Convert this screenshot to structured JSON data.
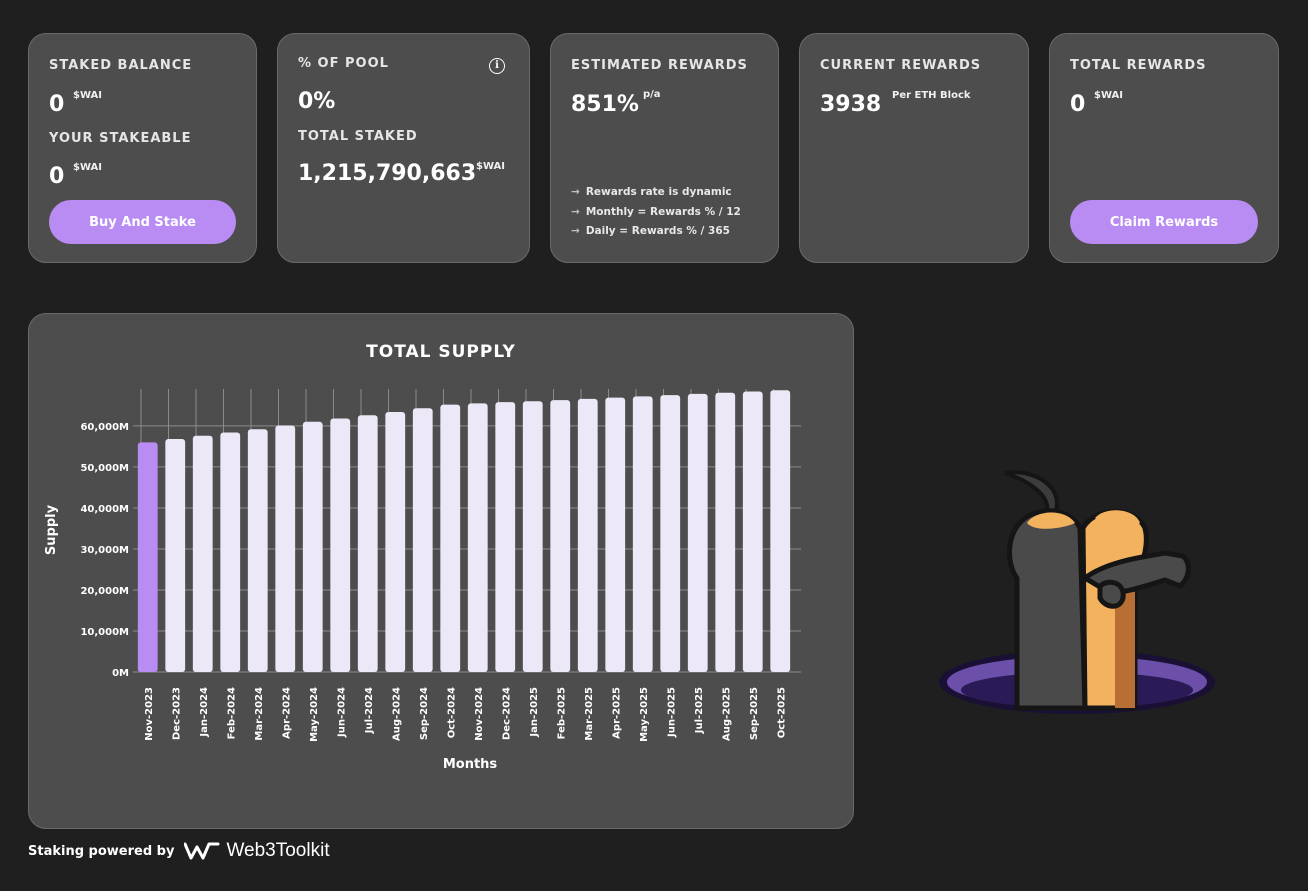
{
  "cards": {
    "staked": {
      "balance_label": "STAKED BALANCE",
      "balance_value": "0",
      "balance_unit": "$WAI",
      "stakeable_label": "YOUR STAKEABLE",
      "stakeable_value": "0",
      "stakeable_unit": "$WAI",
      "button": "Buy And Stake"
    },
    "pool": {
      "pct_label": "% OF POOL",
      "pct_value": "0%",
      "total_label": "TOTAL STAKED",
      "total_value": "1,215,790,663",
      "total_unit": "$WAI",
      "info_icon": "info-icon"
    },
    "estimated": {
      "label": "ESTIMATED REWARDS",
      "value": "851%",
      "unit": "p/a",
      "notes": [
        "Rewards rate is dynamic",
        "Monthly = Rewards % / 12",
        "Daily = Rewards % / 365"
      ]
    },
    "current": {
      "label": "CURRENT REWARDS",
      "value": "3938",
      "unit": "Per ETH Block"
    },
    "total": {
      "label": "TOTAL REWARDS",
      "value": "0",
      "unit": "$WAI",
      "button": "Claim Rewards"
    }
  },
  "chart_data": {
    "type": "bar",
    "title": "TOTAL SUPPLY",
    "xlabel": "Months",
    "ylabel": "Supply",
    "categories": [
      "Nov-2023",
      "Dec-2023",
      "Jan-2024",
      "Feb-2024",
      "Mar-2024",
      "Apr-2024",
      "May-2024",
      "Jun-2024",
      "Jul-2024",
      "Aug-2024",
      "Sep-2024",
      "Oct-2024",
      "Nov-2024",
      "Dec-2024",
      "Jan-2025",
      "Feb-2025",
      "Mar-2025",
      "Apr-2025",
      "May-2025",
      "Jun-2025",
      "Jul-2025",
      "Aug-2025",
      "Sep-2025",
      "Oct-2025"
    ],
    "values": [
      56000,
      56800,
      57600,
      58400,
      59200,
      60100,
      61000,
      61800,
      62600,
      63400,
      64300,
      65200,
      65500,
      65800,
      66000,
      66300,
      66600,
      66900,
      67200,
      67500,
      67800,
      68100,
      68400,
      68700
    ],
    "value_unit": "M",
    "yticks": [
      "0M",
      "10,000M",
      "20,000M",
      "30,000M",
      "40,000M",
      "50,000M",
      "60,000M"
    ],
    "ylim": [
      0,
      69000
    ],
    "highlight_index": 0,
    "colors": {
      "highlight": "#b98cf3",
      "bar": "#ede8f8"
    },
    "grid": true
  },
  "footer": {
    "powered": "Staking powered by",
    "brand": "Web3Toolkit",
    "logo_icon": "web3toolkit-logo-icon"
  },
  "mascot": {
    "icon": "mascot-creature-in-hole"
  }
}
